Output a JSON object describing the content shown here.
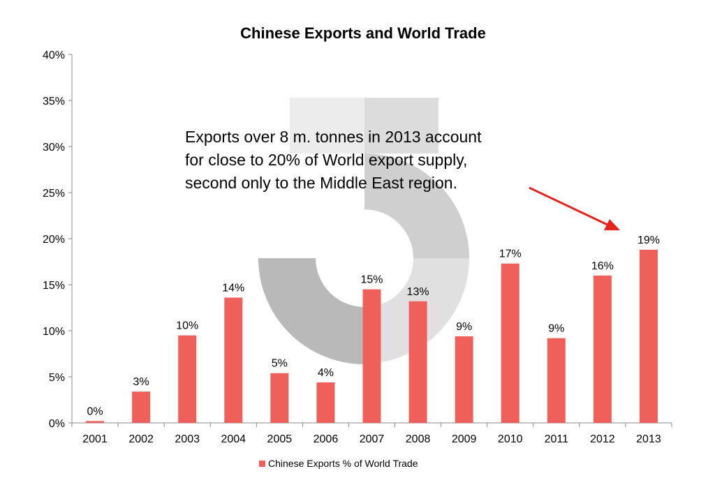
{
  "chart_data": {
    "type": "bar",
    "title": "Chinese Exports and World Trade",
    "xlabel": "",
    "ylabel": "",
    "categories": [
      "2001",
      "2002",
      "2003",
      "2004",
      "2005",
      "2006",
      "2007",
      "2008",
      "2009",
      "2010",
      "2011",
      "2012",
      "2013"
    ],
    "series": [
      {
        "name": "Chinese Exports % of World Trade",
        "values": [
          0.2,
          3.4,
          9.5,
          13.6,
          5.4,
          4.4,
          14.5,
          13.2,
          9.4,
          17.3,
          9.2,
          16.0,
          18.8
        ],
        "data_labels": [
          "0%",
          "3%",
          "10%",
          "14%",
          "5%",
          "4%",
          "15%",
          "13%",
          "9%",
          "17%",
          "9%",
          "16%",
          "19%"
        ],
        "color": "#f0605a"
      }
    ],
    "ylim": [
      0,
      40
    ],
    "yticks": [
      0,
      5,
      10,
      15,
      20,
      25,
      30,
      35,
      40
    ],
    "ytick_labels": [
      "0%",
      "5%",
      "10%",
      "15%",
      "20%",
      "25%",
      "30%",
      "35%",
      "40%"
    ],
    "grid": false,
    "legend_position": "bottom",
    "annotation": {
      "lines": [
        "Exports over 8 m. tonnes in 2013 account",
        "for close to 20% of World export supply,",
        "second only to the Middle East region."
      ],
      "arrow_color": "#e8231d",
      "arrow_target_category": "2013"
    }
  }
}
